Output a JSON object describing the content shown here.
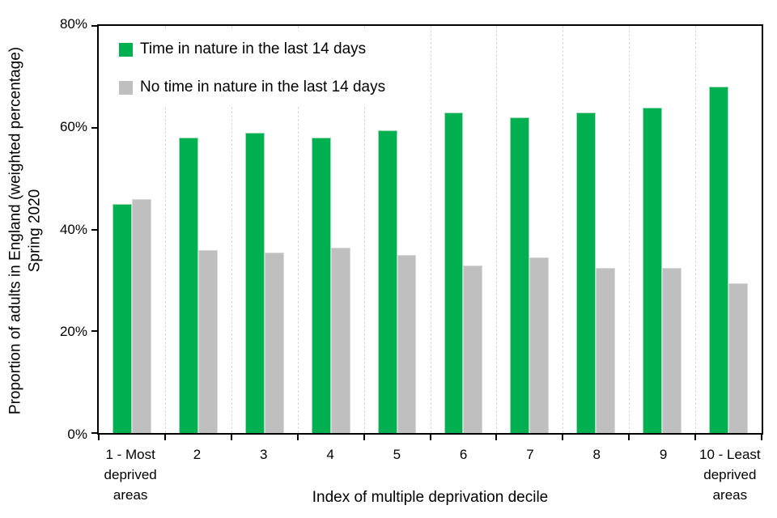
{
  "chart_data": {
    "type": "bar",
    "title": "",
    "categories": [
      "1 - Most deprived areas",
      "2",
      "3",
      "4",
      "5",
      "6",
      "7",
      "8",
      "9",
      "10 - Least deprived areas"
    ],
    "series": [
      {
        "name": "Time in nature in the last 14 days",
        "color": "#00B050",
        "edge": "#9ddcb7",
        "values": [
          45,
          58,
          59,
          58,
          59.5,
          63,
          62,
          63,
          64,
          68
        ]
      },
      {
        "name": "No time in nature in the last 14 days",
        "color": "#BFBFBF",
        "edge": "#d8d8d8",
        "values": [
          46,
          36,
          35.5,
          36.5,
          35,
          33,
          34.5,
          32.5,
          32.5,
          29.5
        ]
      }
    ],
    "xlabel": "Index of multiple deprivation decile",
    "ylabel": "Proportion of adults in England (weighted percentage) Spring 2020",
    "ylim": [
      0,
      80
    ],
    "yticks": [
      "0%",
      "20%",
      "40%",
      "60%",
      "80%"
    ],
    "grid": "vertical-dashed-between-categories",
    "legend_position": "inside-top-left"
  },
  "axes": {
    "y_label_line1": "Proportion of adults in England (weighted percentage)",
    "y_label_line2": "Spring 2020",
    "x_label": "Index of multiple deprivation decile"
  },
  "legend": {
    "items": [
      {
        "label": "Time in nature in the last 14 days",
        "color": "#00B050"
      },
      {
        "label": "No time in nature in the last 14 days",
        "color": "#BFBFBF"
      }
    ]
  },
  "colors": {
    "bar_green": "#00B050",
    "bar_gray": "#BFBFBF",
    "gridline": "#D9D9D9",
    "axis": "#000000",
    "background": "#FFFFFF"
  }
}
